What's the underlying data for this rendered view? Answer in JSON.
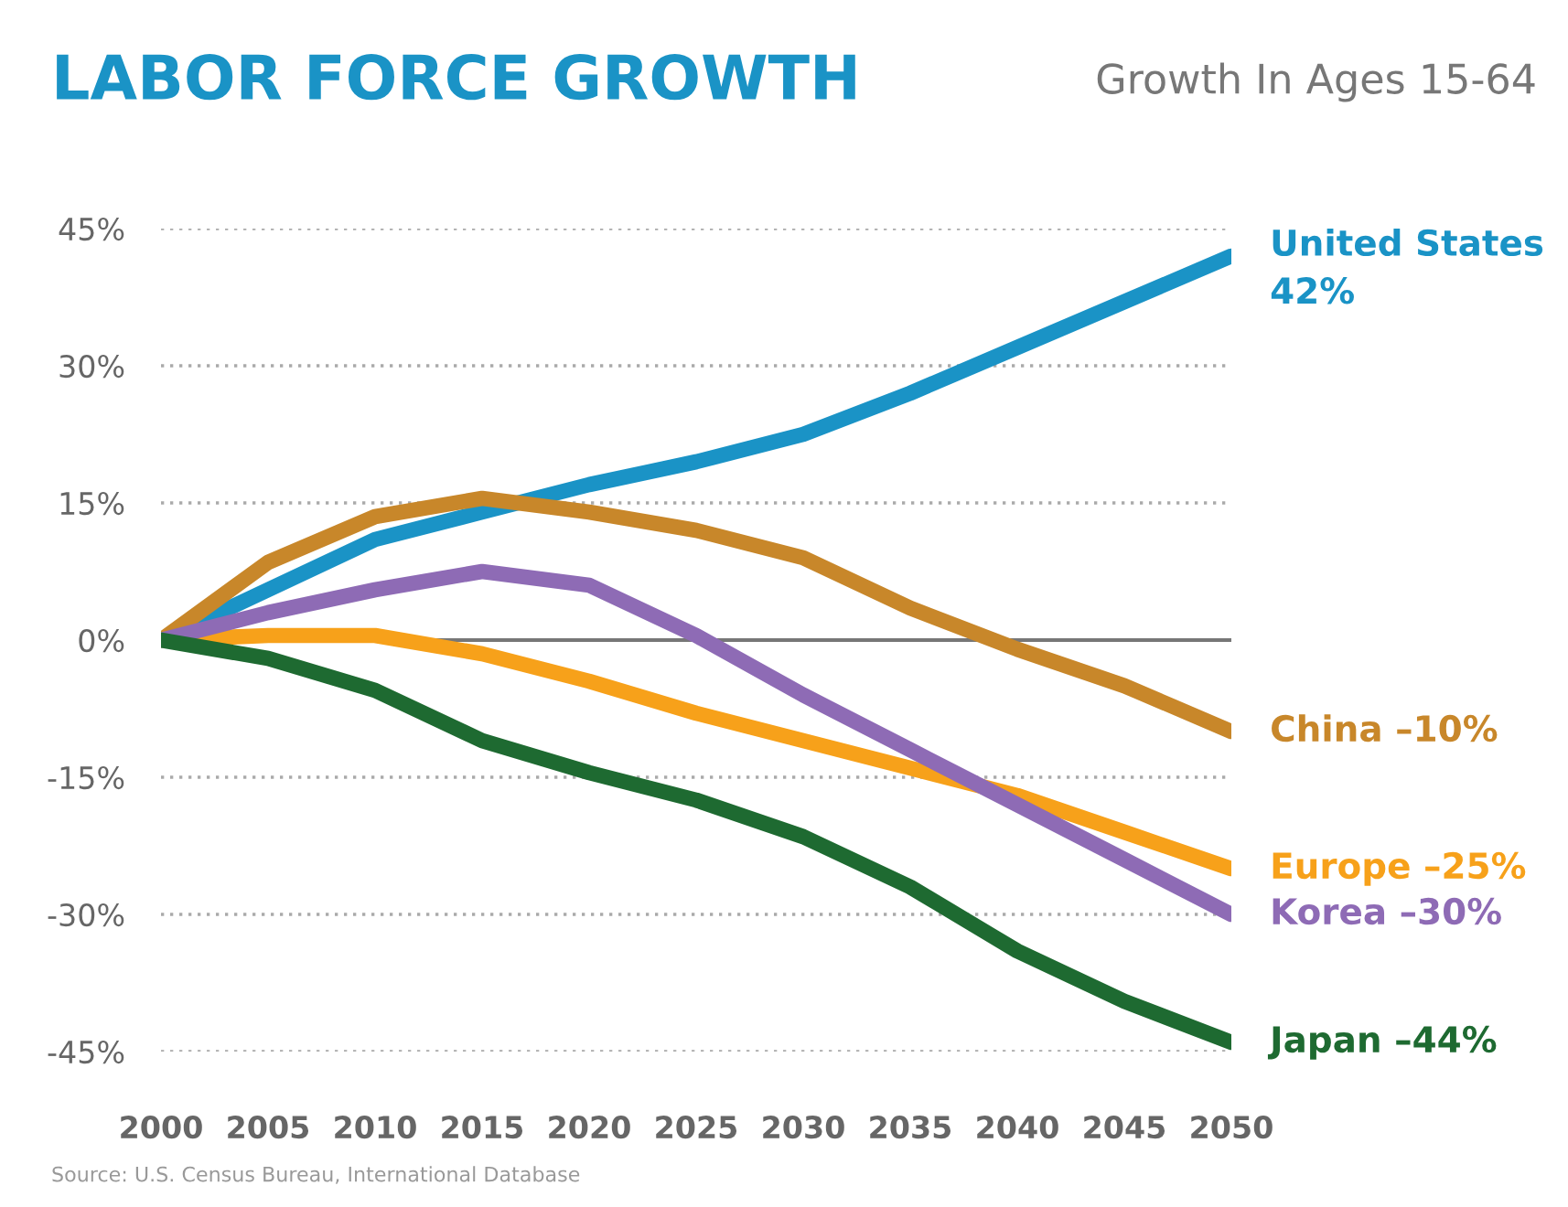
{
  "chart_data": {
    "type": "line",
    "title": "LABOR FORCE GROWTH",
    "subtitle": "Growth In Ages 15-64",
    "annotations": [
      "Source: U.S. Census Bureau, International Database"
    ],
    "x": [
      2000,
      2005,
      2010,
      2015,
      2020,
      2025,
      2030,
      2035,
      2040,
      2045,
      2050
    ],
    "series": [
      {
        "name": "United States",
        "color": "#1a93c6",
        "values": [
          0,
          5.5,
          11,
          14,
          17,
          19.5,
          22.5,
          27,
          32,
          37,
          42
        ],
        "value_labels": [
          null,
          null,
          null,
          null,
          null,
          null,
          null,
          null,
          null,
          null,
          "42%"
        ]
      },
      {
        "name": "China",
        "color": "#c8872a",
        "values": [
          0,
          8.5,
          13.5,
          15.5,
          14,
          12,
          9,
          3.5,
          -1,
          -5,
          -10
        ],
        "value_labels": [
          null,
          null,
          null,
          null,
          null,
          null,
          null,
          null,
          null,
          null,
          "–10%"
        ]
      },
      {
        "name": "Europe",
        "color": "#f7a11a",
        "values": [
          0,
          0.5,
          0.5,
          -1.5,
          -4.5,
          -8,
          -11,
          -14,
          -17,
          -21,
          -25
        ],
        "value_labels": [
          null,
          null,
          null,
          null,
          null,
          null,
          null,
          null,
          null,
          null,
          "–25%"
        ]
      },
      {
        "name": "Korea",
        "color": "#8e6bb5",
        "values": [
          0,
          3,
          5.5,
          7.5,
          6,
          0.5,
          -6,
          -12,
          -18,
          -24,
          -30
        ],
        "value_labels": [
          null,
          null,
          null,
          null,
          null,
          null,
          null,
          null,
          null,
          null,
          "–30%"
        ]
      },
      {
        "name": "Japan",
        "color": "#1e6a31",
        "values": [
          0,
          -2,
          -5.5,
          -11,
          -14.5,
          -17.5,
          -21.5,
          -27,
          -34,
          -39.5,
          -44
        ],
        "value_labels": [
          null,
          null,
          null,
          null,
          null,
          null,
          null,
          null,
          null,
          null,
          "–44%"
        ]
      }
    ],
    "xlim": [
      2000,
      2050
    ],
    "xticks": [
      2000,
      2005,
      2010,
      2015,
      2020,
      2025,
      2030,
      2035,
      2040,
      2045,
      2050
    ],
    "ylim": [
      -45,
      45
    ],
    "yticks": [
      {
        "value": -45,
        "label": "-45%"
      },
      {
        "value": -30,
        "label": "-30%"
      },
      {
        "value": -15,
        "label": "-15%"
      },
      {
        "value": 0,
        "label": "0%"
      },
      {
        "value": 15,
        "label": "15%"
      },
      {
        "value": 30,
        "label": "30%"
      },
      {
        "value": 45,
        "label": "45%"
      }
    ],
    "ref_lines": [
      {
        "axis": "y",
        "value": 0,
        "color": "#777777",
        "line_style": "solid"
      }
    ],
    "grid": "y",
    "line_style": "solid",
    "marker": "none",
    "legend": false
  }
}
